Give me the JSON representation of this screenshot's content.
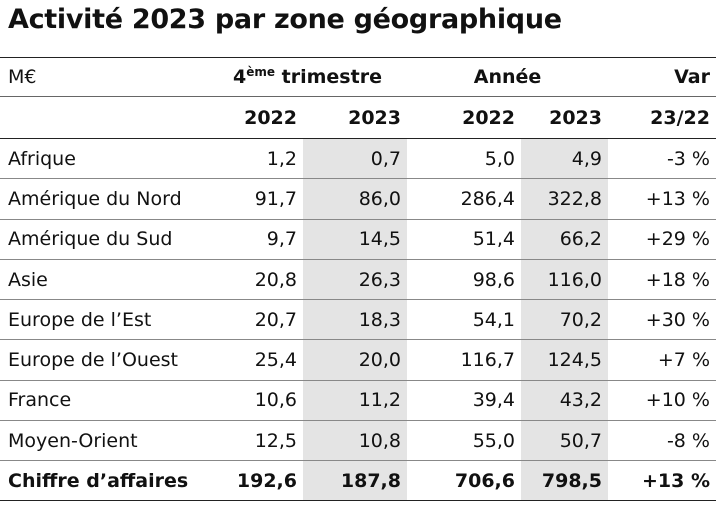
{
  "title": "Activité 2023 par zone géographique",
  "header": {
    "unit": "M€",
    "quarter_group_number": "4",
    "quarter_group_sup": "ème",
    "quarter_group_rest": " trimestre",
    "year_group": "Année",
    "var_group": "Var",
    "q_2022": "2022",
    "q_2023": "2023",
    "a_2022": "2022",
    "a_2023": "2023",
    "var_period": "23/22"
  },
  "rows": [
    {
      "zone": "Afrique",
      "q2022": "1,2",
      "q2023": "0,7",
      "a2022": "5,0",
      "a2023": "4,9",
      "var": "-3 %"
    },
    {
      "zone": "Amérique du Nord",
      "q2022": "91,7",
      "q2023": "86,0",
      "a2022": "286,4",
      "a2023": "322,8",
      "var": "+13 %"
    },
    {
      "zone": "Amérique du Sud",
      "q2022": "9,7",
      "q2023": "14,5",
      "a2022": "51,4",
      "a2023": "66,2",
      "var": "+29 %"
    },
    {
      "zone": "Asie",
      "q2022": "20,8",
      "q2023": "26,3",
      "a2022": "98,6",
      "a2023": "116,0",
      "var": "+18 %"
    },
    {
      "zone": "Europe de l’Est",
      "q2022": "20,7",
      "q2023": "18,3",
      "a2022": "54,1",
      "a2023": "70,2",
      "var": "+30 %"
    },
    {
      "zone": "Europe de l’Ouest",
      "q2022": "25,4",
      "q2023": "20,0",
      "a2022": "116,7",
      "a2023": "124,5",
      "var": "+7 %"
    },
    {
      "zone": "France",
      "q2022": "10,6",
      "q2023": "11,2",
      "a2022": "39,4",
      "a2023": "43,2",
      "var": "+10 %"
    },
    {
      "zone": "Moyen-Orient",
      "q2022": "12,5",
      "q2023": "10,8",
      "a2022": "55,0",
      "a2023": "50,7",
      "var": "-8 %"
    }
  ],
  "total": {
    "zone": "Chiffre d’affaires",
    "q2022": "192,6",
    "q2023": "187,8",
    "a2022": "706,6",
    "a2023": "798,5",
    "var": "+13 %"
  },
  "colors": {
    "shade": "#e4e4e4",
    "rule": "#222222",
    "text": "#111111"
  }
}
